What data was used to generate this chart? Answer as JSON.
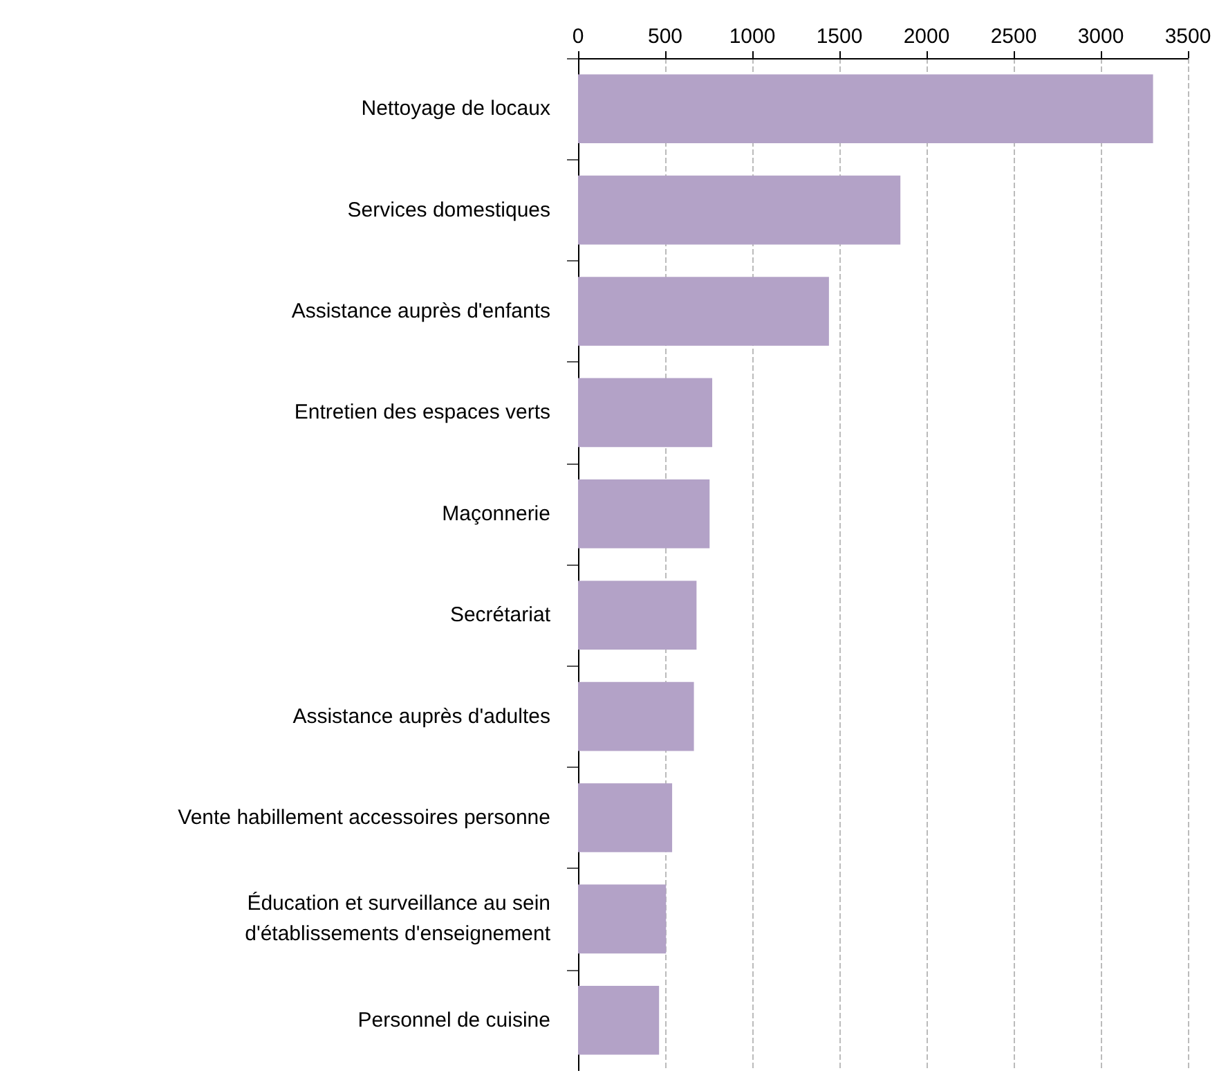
{
  "chart_data": {
    "type": "bar",
    "orientation": "horizontal",
    "categories": [
      "Nettoyage de locaux",
      "Services domestiques",
      "Assistance auprès d'enfants",
      "Entretien des espaces verts",
      "Maçonnerie",
      "Secrétariat",
      "Assistance auprès d'adultes",
      "Vente habillement accessoires personne",
      "Éducation et surveillance au sein\nd'établissements d'enseignement",
      "Personnel de cuisine"
    ],
    "values": [
      3300,
      1850,
      1440,
      770,
      755,
      680,
      665,
      540,
      505,
      465
    ],
    "color": "#b3a2c7",
    "xlim": [
      0,
      3500
    ],
    "xticks": [
      0,
      500,
      1000,
      1500,
      2000,
      2500,
      3000,
      3500
    ],
    "grid": "x"
  }
}
